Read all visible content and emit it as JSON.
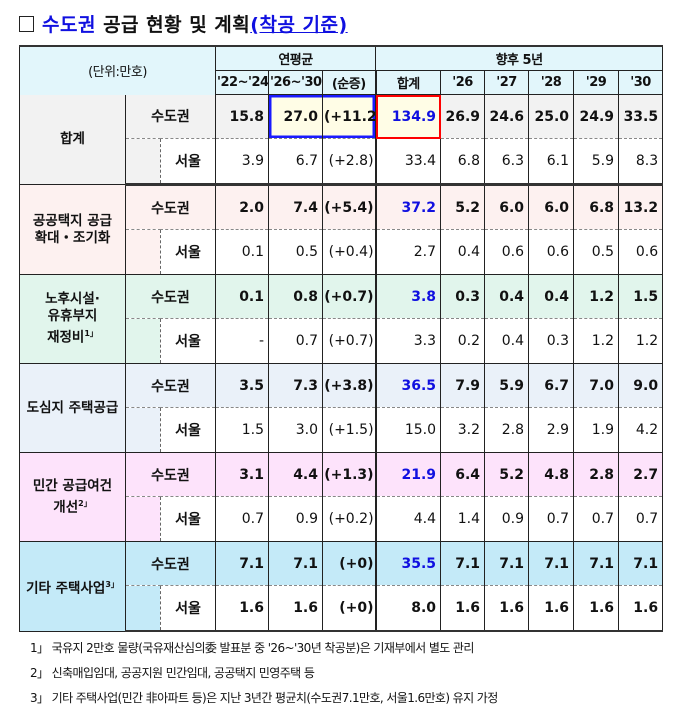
{
  "title": {
    "prefix": "수도권",
    "main": " 공급 현황 및 계획",
    "sub": "(착공 기준)"
  },
  "header": {
    "unit": "(단위:만호)",
    "group_avg": "연평균",
    "group_future": "향후 5년",
    "columns": [
      "'22~'24",
      "'26~'30",
      "(순증)",
      "합계",
      "'26",
      "'27",
      "'28",
      "'29",
      "'30"
    ]
  },
  "groups": [
    {
      "name": "합계",
      "note": "",
      "color": "#f2f2f2",
      "rows": [
        {
          "label": "수도권",
          "values": [
            "15.8",
            "27.0",
            "(+11.2)",
            "134.9",
            "26.9",
            "24.6",
            "25.0",
            "24.9",
            "33.5"
          ]
        },
        {
          "label": "서울",
          "values": [
            "3.9",
            "6.7",
            "(+2.8)",
            "33.4",
            "6.8",
            "6.3",
            "6.1",
            "5.9",
            "8.3"
          ]
        }
      ]
    },
    {
      "name": "공공택지 공급 확대・조기화",
      "note": "",
      "color": "#fdf1f0",
      "rows": [
        {
          "label": "수도권",
          "values": [
            "2.0",
            "7.4",
            "(+5.4)",
            "37.2",
            "5.2",
            "6.0",
            "6.0",
            "6.8",
            "13.2"
          ]
        },
        {
          "label": "서울",
          "values": [
            "0.1",
            "0.5",
            "(+0.4)",
            "2.7",
            "0.4",
            "0.6",
            "0.6",
            "0.5",
            "0.6"
          ]
        }
      ]
    },
    {
      "name": "노후시설· 유휴부지 재정비",
      "note": "1」",
      "color": "#e1f5ec",
      "rows": [
        {
          "label": "수도권",
          "values": [
            "0.1",
            "0.8",
            "(+0.7)",
            "3.8",
            "0.3",
            "0.4",
            "0.4",
            "1.2",
            "1.5"
          ]
        },
        {
          "label": "서울",
          "values": [
            "-",
            "0.7",
            "(+0.7)",
            "3.3",
            "0.2",
            "0.4",
            "0.3",
            "1.2",
            "1.2"
          ]
        }
      ]
    },
    {
      "name": "도심지 주택공급",
      "note": "",
      "color": "#eaf1f9",
      "rows": [
        {
          "label": "수도권",
          "values": [
            "3.5",
            "7.3",
            "(+3.8)",
            "36.5",
            "7.9",
            "5.9",
            "6.7",
            "7.0",
            "9.0"
          ]
        },
        {
          "label": "서울",
          "values": [
            "1.5",
            "3.0",
            "(+1.5)",
            "15.0",
            "3.2",
            "2.8",
            "2.9",
            "1.9",
            "4.2"
          ]
        }
      ]
    },
    {
      "name": "민간 공급여건 개선",
      "note": "2」",
      "color": "#fde3fb",
      "rows": [
        {
          "label": "수도권",
          "values": [
            "3.1",
            "4.4",
            "(+1.3)",
            "21.9",
            "6.4",
            "5.2",
            "4.8",
            "2.8",
            "2.7"
          ]
        },
        {
          "label": "서울",
          "values": [
            "0.7",
            "0.9",
            "(+0.2)",
            "4.4",
            "1.4",
            "0.9",
            "0.7",
            "0.7",
            "0.7"
          ]
        }
      ]
    },
    {
      "name": "기타 주택사업",
      "note": "3」",
      "color": "#c4eaf8",
      "rows": [
        {
          "label": "수도권",
          "values": [
            "7.1",
            "7.1",
            "(+0)",
            "35.5",
            "7.1",
            "7.1",
            "7.1",
            "7.1",
            "7.1"
          ]
        },
        {
          "label": "서울",
          "values": [
            "1.6",
            "1.6",
            "(+0)",
            "8.0",
            "1.6",
            "1.6",
            "1.6",
            "1.6",
            "1.6"
          ]
        }
      ]
    }
  ],
  "notes": [
    "1」 국유지 2만호 물량(국유재산심의委 발표분 중 '26~'30년 착공분)은 기재부에서 별도 관리",
    "2」 신축매입임대, 공공지원 민간임대, 공공택지 민영주택 등",
    "3」 기타 주택사업(민간 非아파트 등)은 지난 3년간 평균치(수도권7.1만호, 서울1.6만호) 유지 가정"
  ],
  "colors": {
    "accent_blue": "#1010e0",
    "highlight_red": "#ff0000",
    "highlight_yellow": "#fffde6",
    "header_bg": "#e2f6fb"
  }
}
